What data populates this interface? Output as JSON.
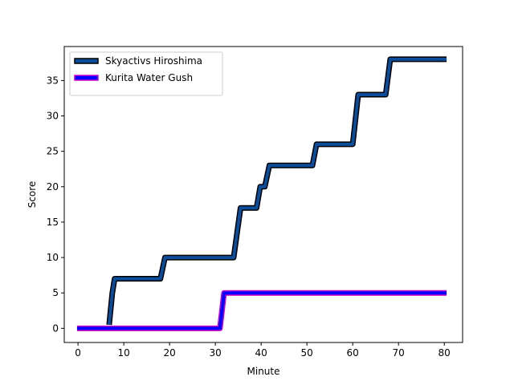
{
  "chart_data": {
    "type": "line",
    "title": "",
    "xlabel": "Minute",
    "ylabel": "Score",
    "xlim": [
      -3,
      84
    ],
    "ylim": [
      -2,
      39.8
    ],
    "xticks": [
      0,
      10,
      20,
      30,
      40,
      50,
      60,
      70,
      80
    ],
    "yticks": [
      0,
      5,
      10,
      15,
      20,
      25,
      30,
      35
    ],
    "legend_position": "upper-left",
    "grid": false,
    "series": [
      {
        "name": "Skyactivs Hiroshima",
        "color": "#0b4d9a",
        "edge_color": "#000000",
        "points": [
          [
            6.8,
            0.5
          ],
          [
            7.5,
            5
          ],
          [
            8,
            7
          ],
          [
            18,
            7
          ],
          [
            19,
            10
          ],
          [
            34,
            10
          ],
          [
            35.5,
            17
          ],
          [
            39,
            17
          ],
          [
            39.8,
            20
          ],
          [
            40.8,
            20
          ],
          [
            41.8,
            23
          ],
          [
            51.2,
            23
          ],
          [
            52.1,
            26
          ],
          [
            60,
            26
          ],
          [
            61.2,
            33
          ],
          [
            67.2,
            33
          ],
          [
            68.2,
            38
          ],
          [
            80.5,
            38
          ]
        ]
      },
      {
        "name": "Kurita Water Gush",
        "color": "#0000ff",
        "edge_color": "#c800c8",
        "points": [
          [
            -0.2,
            0
          ],
          [
            31,
            0
          ],
          [
            31.9,
            5
          ],
          [
            80.5,
            5
          ]
        ]
      }
    ]
  }
}
